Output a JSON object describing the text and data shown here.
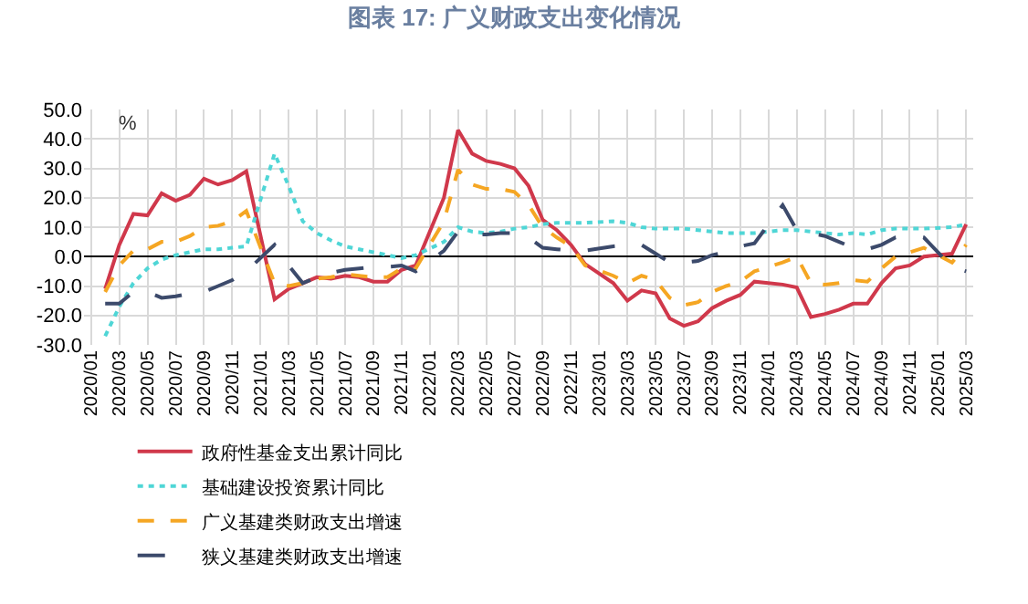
{
  "chart_data": {
    "type": "line",
    "title": "图表 17: 广义财政支出变化情况",
    "ylabel": "%",
    "categories": [
      "2020/01",
      null,
      "2020/03",
      null,
      "2020/05",
      null,
      "2020/07",
      null,
      "2020/09",
      null,
      "2020/11",
      null,
      "2021/01",
      null,
      "2021/03",
      null,
      "2021/05",
      null,
      "2021/07",
      null,
      "2021/09",
      null,
      "2021/11",
      null,
      "2022/01",
      null,
      "2022/03",
      null,
      "2022/05",
      null,
      "2022/07",
      null,
      "2022/09",
      null,
      "2022/11",
      null,
      "2023/01",
      null,
      "2023/03",
      null,
      "2023/05",
      null,
      "2023/07",
      null,
      "2023/09",
      null,
      "2023/11",
      null,
      "2024/01",
      null,
      "2024/03",
      null,
      "2024/05",
      null,
      "2024/07",
      null,
      "2024/09",
      null,
      "2024/11",
      null,
      "2025/01",
      null,
      "2025/03"
    ],
    "series": [
      {
        "name": "政府性基金支出累计同比",
        "color": "#d0384b",
        "line_style": "solid",
        "values": [
          null,
          -11,
          4,
          14.5,
          14,
          21.5,
          19,
          21,
          26.5,
          24.5,
          26,
          29,
          null,
          -14.5,
          -11,
          -9,
          -7,
          -7.5,
          -6.5,
          -7,
          -8.5,
          -8.5,
          -4.5,
          -3,
          null,
          20,
          43,
          35,
          32.5,
          31.5,
          30,
          24,
          12.5,
          9,
          4,
          -2.5,
          null,
          -9,
          -15,
          -11.5,
          -12.5,
          -21,
          -23.5,
          -22,
          -17.5,
          -15,
          -13,
          -8.5,
          null,
          -9.5,
          -10.5,
          -20.5,
          -19.5,
          -18,
          -16,
          -16,
          -9,
          -4,
          -3,
          0,
          null,
          1,
          11
        ]
      },
      {
        "name": "基础建设投资累计同比",
        "color": "#4fd6d6",
        "line_style": "dotted",
        "values": [
          null,
          -27,
          -17,
          -9,
          -4,
          -1,
          0.5,
          1.5,
          2.5,
          2.5,
          3,
          3.5,
          null,
          35,
          24,
          12,
          8,
          5.5,
          3.5,
          2.5,
          1.5,
          0.5,
          -0.5,
          0.5,
          null,
          5,
          10,
          8.5,
          8,
          8.5,
          9.5,
          10,
          11,
          11.5,
          11.5,
          11.5,
          null,
          12,
          11.5,
          10,
          9.5,
          9.5,
          9.5,
          9,
          8.5,
          8,
          8,
          8,
          null,
          9,
          9,
          8.5,
          8,
          7.5,
          8,
          7.5,
          9,
          9.5,
          9.5,
          9.5,
          null,
          10,
          11
        ]
      },
      {
        "name": "广义基建类财政支出增速",
        "color": "#f5a623",
        "line_style": "dashed",
        "values": [
          null,
          -12,
          -3,
          2,
          2.5,
          5,
          5,
          7,
          10,
          10.5,
          12,
          15.5,
          null,
          -9,
          -10,
          -9,
          -7.5,
          -7,
          -6,
          -6.5,
          -7,
          -7,
          -4,
          -4,
          null,
          12,
          29.5,
          24.5,
          23,
          23,
          22,
          17.5,
          10,
          6.5,
          3.5,
          -3,
          null,
          -6.5,
          -9,
          -6.5,
          -8,
          -14,
          -16.5,
          -15.5,
          -12,
          -10,
          -8.5,
          -5,
          null,
          -2,
          0,
          -9,
          -9.5,
          -9,
          -8,
          -8.5,
          -4,
          0,
          1.5,
          3,
          null,
          -2,
          4
        ]
      },
      {
        "name": "狭义基建类财政支出增速",
        "color": "#3c4a6b",
        "line_style": "longdash",
        "values": [
          null,
          -16,
          -16,
          -12,
          -12,
          -14,
          -13.5,
          -12.5,
          -12,
          -10,
          -8,
          -5,
          null,
          4,
          -3,
          -9,
          -7,
          -5.5,
          -4.5,
          -4,
          -3.5,
          -3.5,
          -3,
          -5,
          null,
          2,
          8.5,
          7.5,
          7.5,
          8,
          8,
          6.5,
          3,
          2.5,
          2,
          2,
          null,
          3.5,
          4,
          4,
          1,
          -2,
          -2,
          -1.5,
          0.5,
          1.5,
          3.5,
          4.5,
          null,
          17.5,
          9,
          8,
          7,
          5,
          3,
          2.5,
          4,
          6.5,
          7,
          6.5,
          null,
          -3.5,
          -5
        ]
      }
    ],
    "ylim": [
      -30,
      50
    ],
    "yticks": [
      {
        "value": -30,
        "label": "-30.0"
      },
      {
        "value": -20,
        "label": "-20.0"
      },
      {
        "value": -10,
        "label": "-10.0"
      },
      {
        "value": 0,
        "label": "0.0"
      },
      {
        "value": 10,
        "label": "10.0"
      },
      {
        "value": 20,
        "label": "20.0"
      },
      {
        "value": 30,
        "label": "30.0"
      },
      {
        "value": 40,
        "label": "40.0"
      },
      {
        "value": 50,
        "label": "50.0"
      }
    ],
    "grid": true,
    "legend": "bottom",
    "marker": "none"
  }
}
